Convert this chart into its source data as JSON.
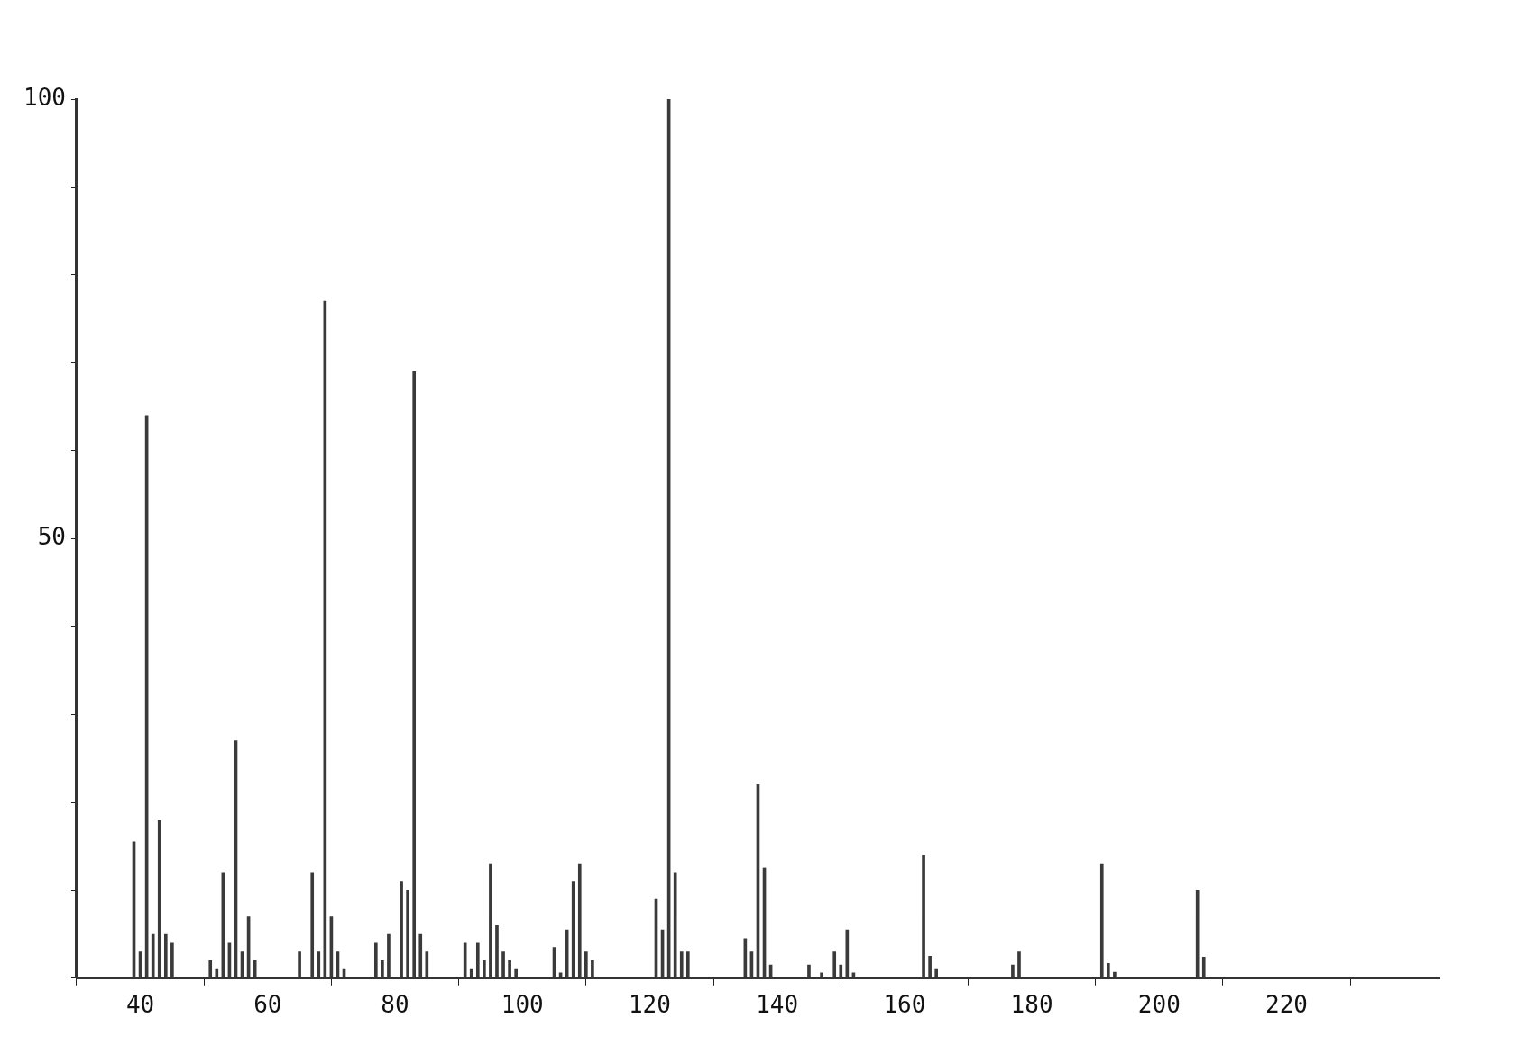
{
  "chart_data": {
    "type": "bar",
    "x": [
      39,
      40,
      41,
      42,
      43,
      44,
      45,
      51,
      52,
      53,
      54,
      55,
      56,
      57,
      58,
      65,
      67,
      68,
      69,
      70,
      71,
      72,
      77,
      78,
      79,
      81,
      82,
      83,
      84,
      85,
      91,
      92,
      93,
      94,
      95,
      96,
      97,
      98,
      99,
      105,
      106,
      107,
      108,
      109,
      110,
      111,
      121,
      122,
      123,
      124,
      125,
      126,
      135,
      136,
      137,
      138,
      139,
      145,
      147,
      149,
      150,
      151,
      152,
      163,
      164,
      165,
      177,
      178,
      191,
      192,
      193,
      206,
      207
    ],
    "values": [
      15.5,
      3,
      64,
      5,
      18,
      5,
      4,
      2,
      1,
      12,
      4,
      27,
      3,
      7,
      2,
      3,
      12,
      3,
      77,
      7,
      3,
      1,
      4,
      2,
      5,
      11,
      10,
      69,
      5,
      3,
      4,
      1,
      4,
      2,
      13,
      6,
      3,
      2,
      1,
      3.5,
      0.6,
      5.5,
      11,
      13,
      3,
      2,
      9,
      5.5,
      100,
      12,
      3,
      3,
      4.5,
      3,
      22,
      12.5,
      1.5,
      1.5,
      0.6,
      3,
      1.5,
      5.5,
      0.6,
      14,
      2.5,
      1,
      1.5,
      3,
      13,
      1.7,
      0.7,
      10,
      2.4
    ],
    "color": "#3a3a3a",
    "xlim": [
      30,
      244
    ],
    "ylim": [
      0,
      100
    ],
    "xticks": [
      40,
      60,
      80,
      100,
      120,
      140,
      160,
      180,
      200,
      220
    ],
    "yticks": [
      {
        "value": 0,
        "label": null
      },
      {
        "value": 10,
        "label": null
      },
      {
        "value": 20,
        "label": null
      },
      {
        "value": 30,
        "label": null
      },
      {
        "value": 40,
        "label": null
      },
      50,
      {
        "value": 60,
        "label": null
      },
      {
        "value": 70,
        "label": null
      },
      {
        "value": 80,
        "label": null
      },
      {
        "value": 90,
        "label": null
      },
      100
    ],
    "grid": false,
    "legend": false
  }
}
